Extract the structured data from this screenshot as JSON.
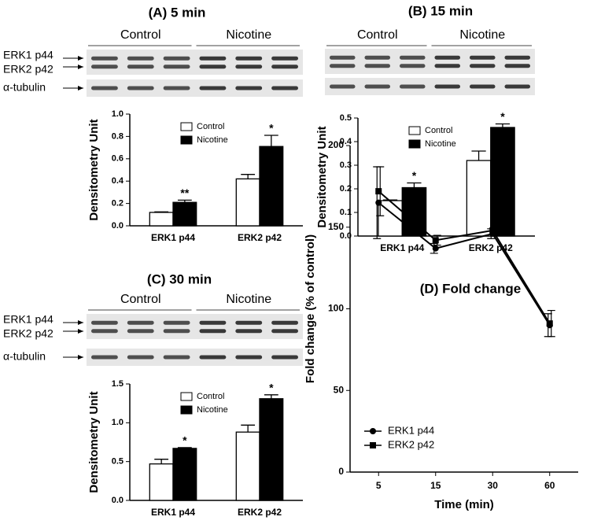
{
  "chart_data": [
    {
      "type": "bar",
      "title": "(A) 5 min",
      "blot": {
        "groups": [
          "Control",
          "Nicotine"
        ],
        "bands": [
          "ERK1 p44",
          "ERK2 p42",
          "α-tubulin"
        ]
      },
      "ylabel": "Densitometry Unit",
      "categories": [
        "ERK1 p44",
        "ERK2 p42"
      ],
      "series": [
        {
          "name": "Control",
          "color": "#ffffff",
          "values": [
            0.12,
            0.42
          ],
          "errors": [
            0.005,
            0.04
          ]
        },
        {
          "name": "Nicotine",
          "color": "#000000",
          "values": [
            0.21,
            0.71
          ],
          "errors": [
            0.02,
            0.1
          ]
        }
      ],
      "annotations": [
        "**",
        "*"
      ],
      "ylim": [
        0,
        1.0
      ],
      "yticks": [
        {
          "value": 0,
          "label": "0.0"
        },
        0.2,
        0.4,
        0.6,
        0.8,
        {
          "value": 1,
          "label": "1.0"
        }
      ]
    },
    {
      "type": "bar",
      "title": "(B) 15 min",
      "blot": {
        "groups": [
          "Control",
          "Nicotine"
        ]
      },
      "ylabel": "Densitometry Unit",
      "categories": [
        "ERK1 p44",
        "ERK2 p42"
      ],
      "series": [
        {
          "name": "Control",
          "color": "#ffffff",
          "values": [
            0.15,
            0.32
          ],
          "errors": [
            0.003,
            0.04
          ]
        },
        {
          "name": "Nicotine",
          "color": "#000000",
          "values": [
            0.205,
            0.46
          ],
          "errors": [
            0.02,
            0.015
          ]
        }
      ],
      "annotations": [
        "*",
        "*"
      ],
      "ylim": [
        0,
        0.5
      ],
      "yticks": [
        {
          "value": 0,
          "label": "0.0"
        },
        0.1,
        0.2,
        0.3,
        0.4,
        0.5
      ]
    },
    {
      "type": "bar",
      "title": "(C) 30 min",
      "blot": {
        "groups": [
          "Control",
          "Nicotine"
        ],
        "bands": [
          "ERK1 p44",
          "ERK2 p42",
          "α-tubulin"
        ]
      },
      "ylabel": "Densitometry Unit",
      "categories": [
        "ERK1 p44",
        "ERK2 p42"
      ],
      "series": [
        {
          "name": "Control",
          "color": "#ffffff",
          "values": [
            0.47,
            0.88
          ],
          "errors": [
            0.06,
            0.09
          ]
        },
        {
          "name": "Nicotine",
          "color": "#000000",
          "values": [
            0.67,
            1.31
          ],
          "errors": [
            0.01,
            0.05
          ]
        }
      ],
      "annotations": [
        "*",
        "*"
      ],
      "ylim": [
        0,
        1.5
      ],
      "yticks": [
        {
          "value": 0,
          "label": "0.0"
        },
        0.5,
        {
          "value": 1,
          "label": "1.0"
        },
        1.5
      ]
    },
    {
      "type": "line",
      "title": "(D) Fold change",
      "xlabel": "Time (min)",
      "ylabel": "Fold change (% of control)",
      "categories": [
        "5",
        "15",
        "30",
        "60"
      ],
      "series": [
        {
          "name": "ERK1 p44",
          "color": "#000000",
          "values": [
            165,
            137,
            146,
            90
          ],
          "errors": [
            22,
            3,
            3,
            7
          ]
        },
        {
          "name": "ERK2 p42",
          "color": "#000000",
          "values": [
            172,
            142,
            148,
            91
          ],
          "errors": [
            15,
            3,
            2,
            8
          ]
        }
      ],
      "ylim": [
        0,
        200
      ],
      "yticks": [
        0,
        50,
        100,
        150,
        200
      ]
    }
  ]
}
